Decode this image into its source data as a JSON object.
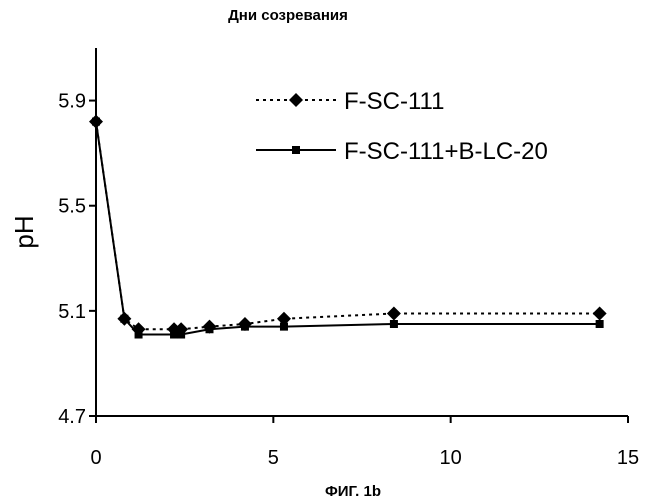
{
  "chart_data": {
    "type": "line",
    "title": "Дни созревания",
    "caption": "ФИГ. 1b",
    "xlabel": "",
    "ylabel": "pH",
    "xlim": [
      0,
      15
    ],
    "ylim": [
      4.7,
      6.1
    ],
    "xticks": [
      0,
      5,
      10,
      15
    ],
    "yticks": [
      4.7,
      5.1,
      5.5,
      5.9
    ],
    "grid": false,
    "legend_position": "top-right",
    "series": [
      {
        "name": "F-SC-111",
        "line_style": "dotted",
        "marker": "diamond",
        "color": "#000000",
        "x": [
          0,
          0.8,
          1.2,
          2.2,
          2.4,
          3.2,
          4.2,
          5.3,
          8.4,
          14.2
        ],
        "y": [
          5.82,
          5.07,
          5.03,
          5.03,
          5.03,
          5.04,
          5.05,
          5.07,
          5.09,
          5.09
        ]
      },
      {
        "name": "F-SC-111+B-LC-20",
        "line_style": "solid",
        "marker": "square",
        "color": "#000000",
        "x": [
          0,
          0.8,
          1.2,
          2.2,
          2.4,
          3.2,
          4.2,
          5.3,
          8.4,
          14.2
        ],
        "y": [
          5.82,
          5.07,
          5.01,
          5.01,
          5.01,
          5.03,
          5.04,
          5.04,
          5.05,
          5.05
        ]
      }
    ]
  }
}
